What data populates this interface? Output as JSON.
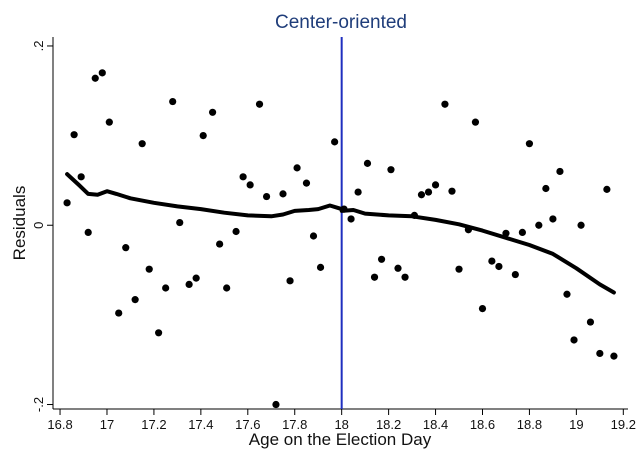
{
  "chart_data": {
    "type": "scatter",
    "title": "Center-oriented",
    "xlabel": "Age on the Election Day",
    "ylabel": "Residuals",
    "xlim": [
      16.77,
      19.22
    ],
    "ylim": [
      -0.205,
      0.21
    ],
    "xticks": [
      16.8,
      17,
      17.2,
      17.4,
      17.6,
      17.8,
      18,
      18.2,
      18.4,
      18.6,
      18.8,
      19,
      19.2
    ],
    "xtick_labels": [
      "16.8",
      "17",
      "17.2",
      "17.4",
      "17.6",
      "17.8",
      "18",
      "18.2",
      "18.4",
      "18.6",
      "18.8",
      "19",
      "19.2"
    ],
    "yticks": [
      -0.2,
      0,
      0.2
    ],
    "ytick_labels": [
      "-.2",
      "0",
      ".2"
    ],
    "cutoff": 18,
    "cutoff_color": "#1f2fbf",
    "grid": false,
    "points": [
      [
        16.83,
        0.025
      ],
      [
        16.86,
        0.101
      ],
      [
        16.89,
        0.054
      ],
      [
        16.92,
        -0.008
      ],
      [
        16.95,
        0.164
      ],
      [
        16.98,
        0.17
      ],
      [
        17.01,
        0.115
      ],
      [
        17.05,
        -0.098
      ],
      [
        17.08,
        -0.025
      ],
      [
        17.12,
        -0.083
      ],
      [
        17.15,
        0.091
      ],
      [
        17.18,
        -0.049
      ],
      [
        17.22,
        -0.12
      ],
      [
        17.25,
        -0.07
      ],
      [
        17.28,
        0.138
      ],
      [
        17.31,
        0.003
      ],
      [
        17.35,
        -0.066
      ],
      [
        17.38,
        -0.059
      ],
      [
        17.41,
        0.1
      ],
      [
        17.45,
        0.126
      ],
      [
        17.48,
        -0.021
      ],
      [
        17.51,
        -0.07
      ],
      [
        17.55,
        -0.007
      ],
      [
        17.58,
        0.054
      ],
      [
        17.61,
        0.045
      ],
      [
        17.65,
        0.135
      ],
      [
        17.68,
        0.032
      ],
      [
        17.72,
        -0.2
      ],
      [
        17.75,
        0.035
      ],
      [
        17.78,
        -0.062
      ],
      [
        17.81,
        0.064
      ],
      [
        17.85,
        0.047
      ],
      [
        17.88,
        -0.012
      ],
      [
        17.91,
        -0.047
      ],
      [
        17.97,
        0.093
      ],
      [
        18.01,
        0.018
      ],
      [
        18.04,
        0.007
      ],
      [
        18.07,
        0.037
      ],
      [
        18.11,
        0.069
      ],
      [
        18.14,
        -0.058
      ],
      [
        18.17,
        -0.038
      ],
      [
        18.21,
        0.062
      ],
      [
        18.24,
        -0.048
      ],
      [
        18.27,
        -0.058
      ],
      [
        18.31,
        0.011
      ],
      [
        18.34,
        0.034
      ],
      [
        18.37,
        0.037
      ],
      [
        18.4,
        0.045
      ],
      [
        18.44,
        0.135
      ],
      [
        18.47,
        0.038
      ],
      [
        18.5,
        -0.049
      ],
      [
        18.54,
        -0.005
      ],
      [
        18.57,
        0.115
      ],
      [
        18.6,
        -0.093
      ],
      [
        18.64,
        -0.04
      ],
      [
        18.67,
        -0.046
      ],
      [
        18.7,
        -0.009
      ],
      [
        18.74,
        -0.055
      ],
      [
        18.77,
        -0.008
      ],
      [
        18.8,
        0.091
      ],
      [
        18.84,
        0.0
      ],
      [
        18.87,
        0.041
      ],
      [
        18.9,
        0.007
      ],
      [
        18.93,
        0.06
      ],
      [
        18.96,
        -0.077
      ],
      [
        18.99,
        -0.128
      ],
      [
        19.02,
        0.0
      ],
      [
        19.06,
        -0.108
      ],
      [
        19.1,
        -0.143
      ],
      [
        19.13,
        0.04
      ],
      [
        19.16,
        -0.146
      ]
    ],
    "smooth_left": [
      [
        16.83,
        0.057
      ],
      [
        16.88,
        0.045
      ],
      [
        16.92,
        0.035
      ],
      [
        16.96,
        0.034
      ],
      [
        17.0,
        0.038
      ],
      [
        17.04,
        0.035
      ],
      [
        17.1,
        0.03
      ],
      [
        17.2,
        0.025
      ],
      [
        17.3,
        0.021
      ],
      [
        17.4,
        0.018
      ],
      [
        17.5,
        0.014
      ],
      [
        17.6,
        0.011
      ],
      [
        17.7,
        0.01
      ],
      [
        17.75,
        0.012
      ],
      [
        17.8,
        0.016
      ],
      [
        17.86,
        0.017
      ],
      [
        17.9,
        0.018
      ],
      [
        17.95,
        0.022
      ],
      [
        18.0,
        0.018
      ]
    ],
    "smooth_right": [
      [
        18.0,
        0.016
      ],
      [
        18.05,
        0.017
      ],
      [
        18.1,
        0.013
      ],
      [
        18.2,
        0.011
      ],
      [
        18.3,
        0.01
      ],
      [
        18.4,
        0.006
      ],
      [
        18.5,
        0.001
      ],
      [
        18.6,
        -0.006
      ],
      [
        18.7,
        -0.014
      ],
      [
        18.8,
        -0.022
      ],
      [
        18.9,
        -0.032
      ],
      [
        19.0,
        -0.048
      ],
      [
        19.1,
        -0.066
      ],
      [
        19.16,
        -0.075
      ]
    ],
    "point_color": "#000000",
    "line_color": "#000000"
  }
}
